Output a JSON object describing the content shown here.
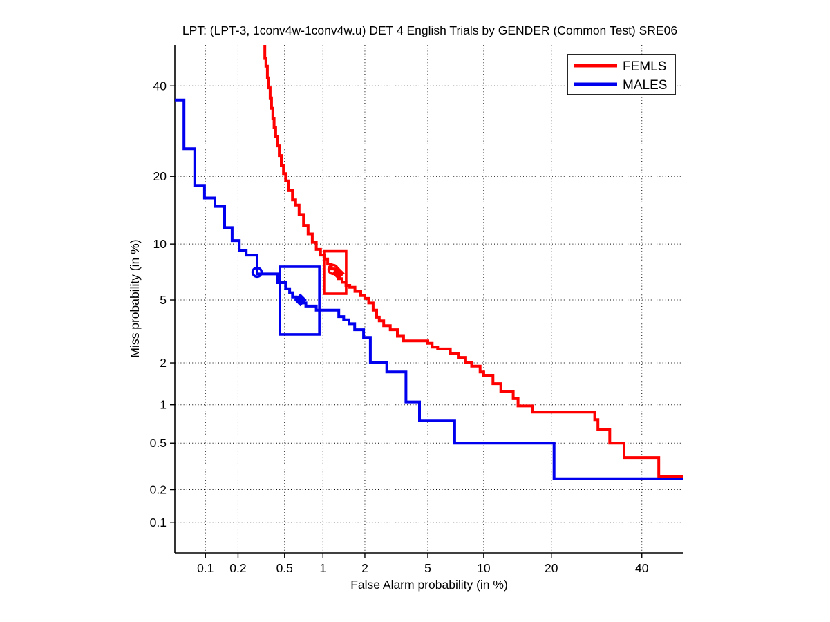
{
  "title": "LPT: (LPT-3, 1conv4w-1conv4w.u) DET 4 English Trials by GENDER (Common Test) SRE06",
  "axes": {
    "x_label": "False Alarm probability (in %)",
    "y_label": "Miss probability (in %)",
    "x_tick_labels": [
      "0.1",
      "0.2",
      "0.5",
      "1",
      "2",
      "5",
      "10",
      "20",
      "40"
    ],
    "y_tick_labels": [
      "0.1",
      "0.2",
      "0.5",
      "1",
      "2",
      "5",
      "10",
      "20",
      "40"
    ],
    "x_ticks_pct": [
      0.1,
      0.2,
      0.5,
      1,
      2,
      5,
      10,
      20,
      40
    ],
    "y_ticks_pct": [
      0.1,
      0.2,
      0.5,
      1,
      2,
      5,
      10,
      20,
      40
    ],
    "x_range_pct": [
      0.05,
      50.7
    ],
    "y_range_pct": [
      0.05,
      50.6
    ],
    "scale": "probit (normal deviate) on both axes",
    "grid": "dotted"
  },
  "legend": {
    "position": "top-right",
    "entries": [
      {
        "label": "FEMLS",
        "color": "#FF0000"
      },
      {
        "label": "MALES",
        "color": "#0000EE"
      }
    ]
  },
  "chart_data": {
    "type": "line",
    "subtype": "DET curve (stepped, probit-probit axes)",
    "title": "LPT: (LPT-3, 1conv4w-1conv4w.u) DET 4 English Trials by GENDER (Common Test) SRE06",
    "xlabel": "False Alarm probability (in %)",
    "ylabel": "Miss probability (in %)",
    "series": [
      {
        "name": "MALES",
        "color": "#0000EE",
        "points_fa_miss_pct": [
          [
            0.05,
            36.5
          ],
          [
            0.062,
            36.5
          ],
          [
            0.062,
            25.4
          ],
          [
            0.079,
            25.4
          ],
          [
            0.079,
            18.4
          ],
          [
            0.098,
            18.4
          ],
          [
            0.098,
            16.3
          ],
          [
            0.123,
            16.3
          ],
          [
            0.123,
            15.0
          ],
          [
            0.151,
            15.0
          ],
          [
            0.151,
            12.0
          ],
          [
            0.177,
            12.0
          ],
          [
            0.177,
            10.4
          ],
          [
            0.205,
            10.4
          ],
          [
            0.205,
            9.3
          ],
          [
            0.236,
            9.3
          ],
          [
            0.236,
            8.8
          ],
          [
            0.294,
            8.8
          ],
          [
            0.294,
            7.0
          ],
          [
            0.44,
            7.0
          ],
          [
            0.44,
            6.27
          ],
          [
            0.51,
            6.27
          ],
          [
            0.51,
            5.8
          ],
          [
            0.55,
            5.8
          ],
          [
            0.55,
            5.5
          ],
          [
            0.58,
            5.5
          ],
          [
            0.58,
            5.2
          ],
          [
            0.62,
            5.2
          ],
          [
            0.62,
            5.0
          ],
          [
            0.7,
            5.0
          ],
          [
            0.7,
            4.8
          ],
          [
            0.74,
            4.8
          ],
          [
            0.74,
            4.6
          ],
          [
            0.89,
            4.6
          ],
          [
            0.89,
            4.35
          ],
          [
            1.31,
            4.35
          ],
          [
            1.31,
            3.98
          ],
          [
            1.42,
            3.98
          ],
          [
            1.42,
            3.8
          ],
          [
            1.55,
            3.8
          ],
          [
            1.55,
            3.6
          ],
          [
            1.7,
            3.6
          ],
          [
            1.7,
            3.3
          ],
          [
            1.96,
            3.3
          ],
          [
            1.96,
            2.95
          ],
          [
            2.18,
            2.95
          ],
          [
            2.18,
            2.02
          ],
          [
            2.8,
            2.02
          ],
          [
            2.8,
            1.73
          ],
          [
            3.7,
            1.73
          ],
          [
            3.7,
            1.05
          ],
          [
            4.47,
            1.05
          ],
          [
            4.47,
            0.76
          ],
          [
            7.08,
            0.76
          ],
          [
            7.08,
            0.5
          ],
          [
            20.5,
            0.5
          ],
          [
            20.5,
            0.25
          ],
          [
            50.7,
            0.25
          ]
        ]
      },
      {
        "name": "FEMLS",
        "color": "#FF0000",
        "points_fa_miss_pct": [
          [
            0.34,
            52
          ],
          [
            0.345,
            47
          ],
          [
            0.355,
            45
          ],
          [
            0.365,
            42
          ],
          [
            0.375,
            39.5
          ],
          [
            0.385,
            37
          ],
          [
            0.395,
            34.5
          ],
          [
            0.405,
            32
          ],
          [
            0.415,
            30
          ],
          [
            0.43,
            28
          ],
          [
            0.445,
            26
          ],
          [
            0.46,
            24
          ],
          [
            0.48,
            22
          ],
          [
            0.5,
            20.5
          ],
          [
            0.52,
            19.2
          ],
          [
            0.56,
            17.5
          ],
          [
            0.6,
            16.0
          ],
          [
            0.63,
            15.2
          ],
          [
            0.68,
            13.8
          ],
          [
            0.74,
            12.3
          ],
          [
            0.8,
            11.2
          ],
          [
            0.86,
            10.2
          ],
          [
            0.92,
            9.4
          ],
          [
            1.0,
            8.8
          ],
          [
            1.05,
            8.4
          ],
          [
            1.12,
            7.9
          ],
          [
            1.19,
            7.45
          ],
          [
            1.27,
            7.0
          ],
          [
            1.34,
            6.6
          ],
          [
            1.43,
            6.3
          ],
          [
            1.52,
            6.05
          ],
          [
            1.62,
            5.9
          ],
          [
            1.8,
            5.6
          ],
          [
            1.95,
            5.3
          ],
          [
            2.05,
            5.1
          ],
          [
            2.2,
            4.8
          ],
          [
            2.35,
            4.35
          ],
          [
            2.45,
            3.95
          ],
          [
            2.55,
            3.75
          ],
          [
            2.8,
            3.5
          ],
          [
            3.1,
            3.3
          ],
          [
            3.45,
            3.0
          ],
          [
            3.7,
            2.8
          ],
          [
            5.0,
            2.8
          ],
          [
            5.0,
            2.7
          ],
          [
            5.3,
            2.7
          ],
          [
            5.3,
            2.55
          ],
          [
            5.7,
            2.55
          ],
          [
            5.7,
            2.48
          ],
          [
            6.7,
            2.48
          ],
          [
            6.7,
            2.3
          ],
          [
            7.4,
            2.3
          ],
          [
            7.4,
            2.18
          ],
          [
            8.1,
            2.18
          ],
          [
            8.1,
            2.0
          ],
          [
            8.7,
            2.0
          ],
          [
            8.7,
            1.9
          ],
          [
            9.6,
            1.9
          ],
          [
            9.6,
            1.73
          ],
          [
            10.0,
            1.73
          ],
          [
            10.0,
            1.64
          ],
          [
            11.1,
            1.64
          ],
          [
            11.1,
            1.43
          ],
          [
            12.1,
            1.43
          ],
          [
            12.1,
            1.25
          ],
          [
            13.8,
            1.25
          ],
          [
            13.8,
            1.11
          ],
          [
            14.5,
            1.11
          ],
          [
            14.5,
            0.98
          ],
          [
            16.7,
            0.98
          ],
          [
            16.7,
            0.88
          ],
          [
            28.8,
            0.88
          ],
          [
            28.8,
            0.77
          ],
          [
            29.5,
            0.77
          ],
          [
            29.5,
            0.64
          ],
          [
            32.2,
            0.64
          ],
          [
            32.2,
            0.5
          ],
          [
            35.6,
            0.5
          ],
          [
            35.6,
            0.38
          ],
          [
            44.3,
            0.38
          ],
          [
            44.3,
            0.26
          ],
          [
            50.7,
            0.26
          ]
        ]
      }
    ],
    "markers": [
      {
        "series": "MALES",
        "shape": "open-circle",
        "fa_pct": 0.294,
        "miss_pct": 7.15,
        "color": "#0000EE"
      },
      {
        "series": "MALES",
        "shape": "filled-diamond",
        "fa_pct": 0.67,
        "miss_pct": 5.0,
        "color": "#0000EE"
      },
      {
        "series": "FEMLS",
        "shape": "open-circle",
        "fa_pct": 1.19,
        "miss_pct": 7.4,
        "color": "#FF0000"
      },
      {
        "series": "FEMLS",
        "shape": "filled-diamond",
        "fa_pct": 1.3,
        "miss_pct": 7.05,
        "color": "#FF0000"
      }
    ],
    "boxes": [
      {
        "series": "MALES",
        "color": "#0000EE",
        "fa_pct": [
          0.457,
          0.94
        ],
        "miss_pct": [
          3.08,
          7.65
        ]
      },
      {
        "series": "FEMLS",
        "color": "#FF0000",
        "fa_pct": [
          1.02,
          1.48
        ],
        "miss_pct": [
          5.43,
          9.2
        ]
      }
    ]
  }
}
